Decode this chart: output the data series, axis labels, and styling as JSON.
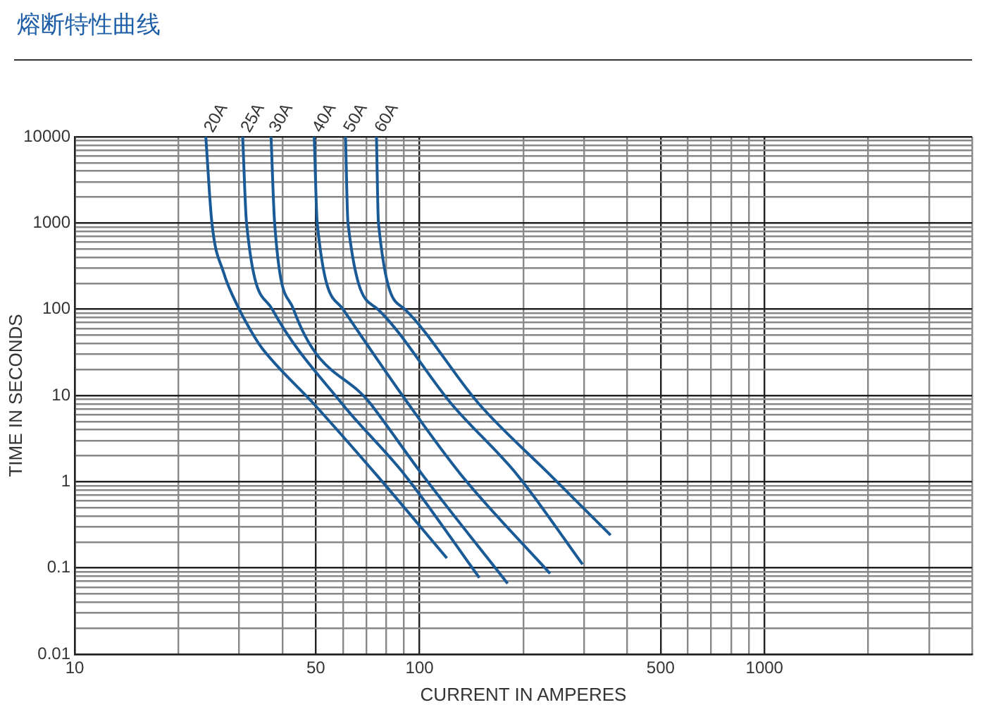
{
  "chart_data": {
    "type": "line",
    "title": "熔断特性曲线",
    "xlabel": "CURRENT IN AMPERES",
    "ylabel": "TIME IN SECONDS",
    "log": "xy",
    "grid": true,
    "legend": false,
    "marker": "none",
    "line_style": "solid",
    "xlim": [
      10,
      4000
    ],
    "ylim": [
      0.01,
      10000
    ],
    "xticks": [
      10,
      {
        "value": 20,
        "label": null
      },
      {
        "value": 30,
        "label": null
      },
      {
        "value": 40,
        "label": null
      },
      50,
      {
        "value": 60,
        "label": null
      },
      {
        "value": 70,
        "label": null
      },
      {
        "value": 80,
        "label": null
      },
      {
        "value": 90,
        "label": null
      },
      100,
      {
        "value": 200,
        "label": null
      },
      {
        "value": 300,
        "label": null
      },
      {
        "value": 400,
        "label": null
      },
      500,
      {
        "value": 600,
        "label": null
      },
      {
        "value": 700,
        "label": null
      },
      {
        "value": 800,
        "label": null
      },
      {
        "value": 900,
        "label": null
      },
      1000,
      {
        "value": 2000,
        "label": null
      },
      {
        "value": 3000,
        "label": null
      },
      {
        "value": 4000,
        "label": null
      }
    ],
    "yticks": [
      0.01,
      {
        "value": 0.02,
        "label": null
      },
      {
        "value": 0.03,
        "label": null
      },
      {
        "value": 0.04,
        "label": null
      },
      {
        "value": 0.05,
        "label": null
      },
      {
        "value": 0.06,
        "label": null
      },
      {
        "value": 0.07,
        "label": null
      },
      {
        "value": 0.08,
        "label": null
      },
      {
        "value": 0.09,
        "label": null
      },
      0.1,
      {
        "value": 0.2,
        "label": null
      },
      {
        "value": 0.3,
        "label": null
      },
      {
        "value": 0.4,
        "label": null
      },
      {
        "value": 0.5,
        "label": null
      },
      {
        "value": 0.6,
        "label": null
      },
      {
        "value": 0.7,
        "label": null
      },
      {
        "value": 0.8,
        "label": null
      },
      {
        "value": 0.9,
        "label": null
      },
      1,
      {
        "value": 2,
        "label": null
      },
      {
        "value": 3,
        "label": null
      },
      {
        "value": 4,
        "label": null
      },
      {
        "value": 5,
        "label": null
      },
      {
        "value": 6,
        "label": null
      },
      {
        "value": 7,
        "label": null
      },
      {
        "value": 8,
        "label": null
      },
      {
        "value": 9,
        "label": null
      },
      10,
      {
        "value": 20,
        "label": null
      },
      {
        "value": 30,
        "label": null
      },
      {
        "value": 40,
        "label": null
      },
      {
        "value": 50,
        "label": null
      },
      {
        "value": 60,
        "label": null
      },
      {
        "value": 70,
        "label": null
      },
      {
        "value": 80,
        "label": null
      },
      {
        "value": 90,
        "label": null
      },
      100,
      {
        "value": 200,
        "label": null
      },
      {
        "value": 300,
        "label": null
      },
      {
        "value": 400,
        "label": null
      },
      {
        "value": 500,
        "label": null
      },
      {
        "value": 600,
        "label": null
      },
      {
        "value": 700,
        "label": null
      },
      {
        "value": 800,
        "label": null
      },
      {
        "value": 900,
        "label": null
      },
      1000,
      {
        "value": 2000,
        "label": null
      },
      {
        "value": 3000,
        "label": null
      },
      {
        "value": 4000,
        "label": null
      },
      {
        "value": 5000,
        "label": null
      },
      {
        "value": 6000,
        "label": null
      },
      {
        "value": 7000,
        "label": null
      },
      {
        "value": 8000,
        "label": null
      },
      {
        "value": 9000,
        "label": null
      },
      10000
    ],
    "series": [
      {
        "name": "20A",
        "color": "#1a5a96",
        "x": [
          24,
          25,
          27,
          30,
          33,
          35,
          49.5,
          75,
          120
        ],
        "values": [
          10000,
          1000,
          270,
          100,
          50,
          35,
          7.9,
          1.2,
          0.13
        ]
      },
      {
        "name": "25A",
        "color": "#1a5a96",
        "x": [
          30.7,
          31.5,
          37.4,
          59.8,
          90.6,
          149
        ],
        "values": [
          10000,
          1000,
          100,
          7.9,
          1.2,
          0.077
        ]
      },
      {
        "name": "30A",
        "color": "#1a5a96",
        "x": [
          37.1,
          38,
          43.1,
          72.3,
          102,
          180
        ],
        "values": [
          10000,
          1000,
          100,
          7.9,
          1.2,
          0.066
        ]
      },
      {
        "name": "40A",
        "color": "#1a5a96",
        "x": [
          49.5,
          50.5,
          60,
          93,
          132,
          239
        ],
        "values": [
          10000,
          1000,
          100,
          7.9,
          1.2,
          0.086
        ]
      },
      {
        "name": "50A",
        "color": "#1a5a96",
        "x": [
          61,
          62,
          75.7,
          124,
          192,
          297
        ],
        "values": [
          10000,
          1000,
          100,
          7.9,
          1.2,
          0.11
        ]
      },
      {
        "name": "60A",
        "color": "#1a5a96",
        "x": [
          75,
          76,
          90.6,
          149,
          239,
          358
        ],
        "values": [
          10000,
          1000,
          100,
          7.9,
          1.2,
          0.24
        ]
      }
    ]
  }
}
